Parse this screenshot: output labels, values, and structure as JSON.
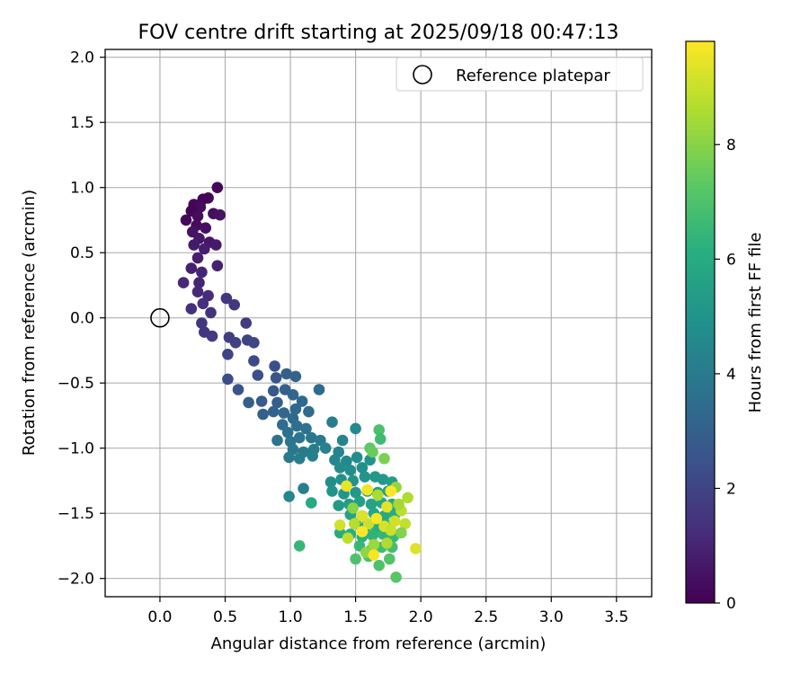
{
  "chart_data": {
    "type": "scatter",
    "title": "FOV centre drift starting at 2025/09/18 00:47:13",
    "xlabel": "Angular distance from reference (arcmin)",
    "ylabel": "Rotation from reference (arcmin)",
    "xlim": [
      -0.42,
      3.77
    ],
    "ylim": [
      -2.14,
      2.06
    ],
    "xticks": [
      0.0,
      0.5,
      1.0,
      1.5,
      2.0,
      2.5,
      3.0,
      3.5
    ],
    "xtick_labels": [
      "0.0",
      "0.5",
      "1.0",
      "1.5",
      "2.0",
      "2.5",
      "3.0",
      "3.5"
    ],
    "yticks": [
      -2.0,
      -1.5,
      -1.0,
      -0.5,
      0.0,
      0.5,
      1.0,
      1.5,
      2.0
    ],
    "ytick_labels": [
      "−2.0",
      "−1.5",
      "−1.0",
      "−0.5",
      "0.0",
      "0.5",
      "1.0",
      "1.5",
      "2.0"
    ],
    "grid": true,
    "legend": {
      "position": "top-right",
      "label": "Reference platepar",
      "marker": "open-circle"
    },
    "reference_point": {
      "x": 0.0,
      "y": 0.0
    },
    "colorbar": {
      "label": "Hours from first FF file",
      "colormap": "viridis",
      "range": [
        0,
        9.8
      ],
      "ticks": [
        0,
        2,
        4,
        6,
        8
      ],
      "tick_labels": [
        "0",
        "2",
        "4",
        "6",
        "8"
      ]
    },
    "points": [
      [
        0.44,
        1.0,
        0.2
      ],
      [
        0.37,
        0.92,
        0.2
      ],
      [
        0.33,
        0.91,
        0.1
      ],
      [
        0.26,
        0.87,
        0.2
      ],
      [
        0.31,
        0.85,
        0.3
      ],
      [
        0.24,
        0.82,
        0.1
      ],
      [
        0.29,
        0.78,
        0.3
      ],
      [
        0.41,
        0.8,
        0.4
      ],
      [
        0.46,
        0.79,
        0.5
      ],
      [
        0.2,
        0.75,
        0.2
      ],
      [
        0.28,
        0.71,
        0.3
      ],
      [
        0.35,
        0.69,
        0.4
      ],
      [
        0.25,
        0.66,
        0.5
      ],
      [
        0.3,
        0.61,
        0.6
      ],
      [
        0.38,
        0.58,
        0.6
      ],
      [
        0.26,
        0.56,
        0.7
      ],
      [
        0.43,
        0.56,
        0.7
      ],
      [
        0.34,
        0.53,
        0.8
      ],
      [
        0.29,
        0.46,
        0.8
      ],
      [
        0.44,
        0.4,
        0.9
      ],
      [
        0.24,
        0.38,
        0.9
      ],
      [
        0.32,
        0.35,
        1.0
      ],
      [
        0.3,
        0.27,
        1.0
      ],
      [
        0.18,
        0.27,
        1.1
      ],
      [
        0.29,
        0.2,
        1.1
      ],
      [
        0.37,
        0.17,
        1.2
      ],
      [
        0.33,
        0.11,
        1.3
      ],
      [
        0.24,
        0.07,
        1.3
      ],
      [
        0.39,
        0.04,
        1.4
      ],
      [
        0.51,
        0.15,
        1.5
      ],
      [
        0.57,
        0.1,
        1.6
      ],
      [
        0.32,
        -0.04,
        1.5
      ],
      [
        0.66,
        -0.04,
        1.7
      ],
      [
        0.34,
        -0.11,
        1.6
      ],
      [
        0.4,
        -0.14,
        1.7
      ],
      [
        0.53,
        -0.15,
        1.8
      ],
      [
        0.58,
        -0.19,
        1.9
      ],
      [
        0.67,
        -0.17,
        2.0
      ],
      [
        0.72,
        -0.19,
        2.1
      ],
      [
        0.52,
        -0.28,
        2.0
      ],
      [
        0.72,
        -0.33,
        2.2
      ],
      [
        0.88,
        -0.37,
        2.4
      ],
      [
        0.75,
        -0.44,
        2.4
      ],
      [
        0.52,
        -0.47,
        2.3
      ],
      [
        0.6,
        -0.55,
        2.5
      ],
      [
        0.89,
        -0.46,
        2.6
      ],
      [
        0.97,
        -0.43,
        3.0
      ],
      [
        1.04,
        -0.45,
        3.1
      ],
      [
        0.87,
        -0.56,
        2.7
      ],
      [
        0.96,
        -0.55,
        3.0
      ],
      [
        0.78,
        -0.64,
        2.8
      ],
      [
        0.68,
        -0.65,
        2.9
      ],
      [
        1.02,
        -0.59,
        3.2
      ],
      [
        0.9,
        -0.65,
        3.0
      ],
      [
        1.22,
        -0.55,
        3.4
      ],
      [
        1.09,
        -0.64,
        3.3
      ],
      [
        0.79,
        -0.74,
        3.0
      ],
      [
        0.87,
        -0.72,
        3.1
      ],
      [
        0.95,
        -0.73,
        3.2
      ],
      [
        1.04,
        -0.7,
        3.3
      ],
      [
        1.14,
        -0.72,
        3.4
      ],
      [
        1.02,
        -0.77,
        3.4
      ],
      [
        0.94,
        -0.82,
        3.5
      ],
      [
        1.05,
        -0.83,
        3.6
      ],
      [
        0.98,
        -0.88,
        3.6
      ],
      [
        1.12,
        -0.85,
        3.7
      ],
      [
        0.9,
        -0.94,
        3.7
      ],
      [
        1.0,
        -0.95,
        3.8
      ],
      [
        1.07,
        -0.92,
        3.8
      ],
      [
        1.16,
        -0.92,
        3.9
      ],
      [
        1.23,
        -0.94,
        4.0
      ],
      [
        1.32,
        -0.8,
        4.1
      ],
      [
        1.02,
        -1.01,
        3.9
      ],
      [
        1.1,
        -1.03,
        4.0
      ],
      [
        1.18,
        -1.01,
        4.1
      ],
      [
        0.99,
        -1.07,
        4.0
      ],
      [
        1.07,
        -1.08,
        4.1
      ],
      [
        1.17,
        -1.06,
        4.2
      ],
      [
        1.27,
        -1.0,
        4.3
      ],
      [
        1.37,
        -1.03,
        4.4
      ],
      [
        1.4,
        -0.94,
        4.4
      ],
      [
        1.5,
        -0.85,
        4.6
      ],
      [
        1.34,
        -1.09,
        4.5
      ],
      [
        1.43,
        -1.1,
        4.6
      ],
      [
        1.51,
        -1.07,
        4.7
      ],
      [
        1.38,
        -1.15,
        4.7
      ],
      [
        1.46,
        -1.17,
        4.8
      ],
      [
        1.55,
        -1.15,
        4.9
      ],
      [
        1.61,
        -1.09,
        5.0
      ],
      [
        1.31,
        -1.26,
        4.8
      ],
      [
        1.39,
        -1.24,
        4.9
      ],
      [
        1.48,
        -1.25,
        5.0
      ],
      [
        1.57,
        -1.22,
        5.1
      ],
      [
        1.65,
        -1.22,
        5.2
      ],
      [
        1.71,
        -1.24,
        5.3
      ],
      [
        1.78,
        -1.26,
        5.4
      ],
      [
        1.32,
        -1.33,
        5.0
      ],
      [
        1.41,
        -1.35,
        5.1
      ],
      [
        1.5,
        -1.34,
        5.2
      ],
      [
        1.59,
        -1.33,
        5.3
      ],
      [
        1.67,
        -1.34,
        5.4
      ],
      [
        1.75,
        -1.33,
        5.5
      ],
      [
        1.37,
        -1.44,
        5.3
      ],
      [
        1.45,
        -1.43,
        5.4
      ],
      [
        1.53,
        -1.41,
        5.5
      ],
      [
        1.62,
        -1.43,
        5.6
      ],
      [
        1.7,
        -1.42,
        5.7
      ],
      [
        1.78,
        -1.43,
        5.8
      ],
      [
        1.46,
        -1.51,
        5.6
      ],
      [
        1.55,
        -1.52,
        5.7
      ],
      [
        1.64,
        -1.5,
        5.8
      ],
      [
        1.72,
        -1.52,
        5.9
      ],
      [
        1.8,
        -1.51,
        6.0
      ],
      [
        1.5,
        -1.58,
        5.9
      ],
      [
        1.58,
        -1.6,
        6.0
      ],
      [
        1.66,
        -1.61,
        6.1
      ],
      [
        1.74,
        -1.59,
        6.2
      ],
      [
        1.38,
        -1.65,
        6.0
      ],
      [
        1.46,
        -1.66,
        6.1
      ],
      [
        1.55,
        -1.68,
        6.2
      ],
      [
        1.63,
        -1.67,
        6.3
      ],
      [
        1.71,
        -1.66,
        6.4
      ],
      [
        1.79,
        -1.68,
        6.5
      ],
      [
        1.53,
        -1.75,
        6.5
      ],
      [
        1.62,
        -1.78,
        6.6
      ],
      [
        1.7,
        -1.76,
        6.7
      ],
      [
        1.78,
        -1.76,
        6.8
      ],
      [
        1.6,
        -1.83,
        6.9
      ],
      [
        1.68,
        -1.9,
        7.0
      ],
      [
        1.5,
        -1.85,
        7.0
      ],
      [
        1.76,
        -1.85,
        7.1
      ],
      [
        1.81,
        -1.99,
        7.2
      ],
      [
        1.1,
        -1.31,
        4.2
      ],
      [
        0.99,
        -1.37,
        4.5
      ],
      [
        1.16,
        -1.42,
        5.9
      ],
      [
        1.07,
        -1.75,
        6.5
      ],
      [
        1.68,
        -0.86,
        6.9
      ],
      [
        1.69,
        -0.93,
        6.7
      ],
      [
        1.61,
        -1.0,
        7.3
      ],
      [
        1.63,
        -1.03,
        7.5
      ],
      [
        1.72,
        -1.08,
        7.8
      ],
      [
        1.81,
        -1.3,
        8.2
      ],
      [
        1.9,
        -1.38,
        8.6
      ],
      [
        1.85,
        -1.48,
        8.8
      ],
      [
        1.88,
        -1.58,
        8.9
      ],
      [
        1.8,
        -1.56,
        9.1
      ],
      [
        1.72,
        -1.6,
        9.2
      ],
      [
        1.6,
        -1.58,
        9.0
      ],
      [
        1.55,
        -1.52,
        9.3
      ],
      [
        1.49,
        -1.58,
        8.7
      ],
      [
        1.43,
        -1.29,
        9.5
      ],
      [
        1.59,
        -1.32,
        9.6
      ],
      [
        1.67,
        -1.36,
        8.5
      ],
      [
        1.74,
        -1.45,
        9.4
      ],
      [
        1.66,
        -1.54,
        9.7
      ],
      [
        1.83,
        -1.43,
        8.4
      ],
      [
        1.77,
        -1.63,
        9.0
      ],
      [
        1.64,
        -1.74,
        8.3
      ],
      [
        1.58,
        -1.8,
        8.1
      ],
      [
        1.55,
        -1.64,
        9.8
      ],
      [
        1.44,
        -1.69,
        8.8
      ],
      [
        1.96,
        -1.77,
        9.3
      ],
      [
        1.74,
        -1.73,
        8.6
      ],
      [
        1.38,
        -1.59,
        9.1
      ],
      [
        1.48,
        -1.46,
        8.0
      ],
      [
        1.64,
        -1.82,
        9.7
      ],
      [
        1.85,
        -1.65,
        7.9
      ],
      [
        1.77,
        -1.33,
        9.9
      ]
    ]
  }
}
